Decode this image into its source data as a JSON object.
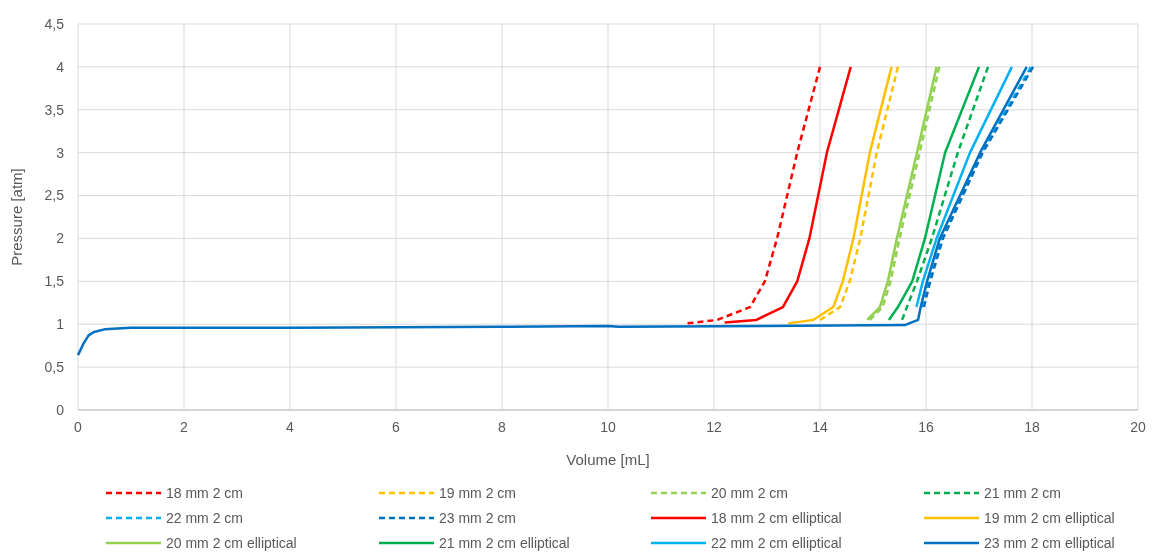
{
  "chart_data": {
    "type": "line",
    "xlabel": "Volume [mL]",
    "ylabel": "Pressure [atm]",
    "xlim": [
      0,
      20
    ],
    "ylim": [
      0,
      4.5
    ],
    "xticks": [
      0,
      2,
      4,
      6,
      8,
      10,
      12,
      14,
      16,
      18,
      20
    ],
    "yticks": [
      0,
      {
        "value": 0.5,
        "label": "0,5"
      },
      1,
      {
        "value": 1.5,
        "label": "1,5"
      },
      2,
      {
        "value": 2.5,
        "label": "2,5"
      },
      3,
      {
        "value": 3.5,
        "label": "3,5"
      },
      4,
      {
        "value": 4.5,
        "label": "4,5"
      }
    ],
    "grid": true,
    "legend": "bottom",
    "marker": "none",
    "series": [
      {
        "name": "18 mm 2 cm",
        "color": "#ff0000",
        "line_style": "dashed",
        "x": [
          11.5,
          12.06,
          12.68,
          12.96,
          13.19,
          13.57,
          14.0
        ],
        "values": [
          1.01,
          1.05,
          1.2,
          1.5,
          2,
          3,
          4
        ]
      },
      {
        "name": "19 mm 2 cm",
        "color": "#ffc000",
        "line_style": "dashed",
        "x": [
          14.0,
          14.38,
          14.56,
          14.76,
          15.07,
          15.47
        ],
        "values": [
          1.05,
          1.2,
          1.5,
          2,
          3,
          4
        ]
      },
      {
        "name": "20 mm 2 cm",
        "color": "#92d050",
        "line_style": "dashed",
        "x": [
          14.94,
          15.18,
          15.33,
          15.5,
          15.88,
          16.25
        ],
        "values": [
          1.05,
          1.2,
          1.5,
          2,
          3,
          4
        ]
      },
      {
        "name": "21 mm 2 cm",
        "color": "#00b050",
        "line_style": "dashed",
        "x": [
          15.55,
          15.64,
          15.83,
          16.11,
          16.6,
          17.17
        ],
        "values": [
          1.05,
          1.2,
          1.5,
          2,
          3,
          4
        ]
      },
      {
        "name": "22 mm 2 cm",
        "color": "#00b0f0",
        "line_style": "dashed",
        "x": [
          15.92,
          16.05,
          16.3,
          17.05,
          17.98
        ],
        "values": [
          1.2,
          1.5,
          2,
          3,
          4
        ]
      },
      {
        "name": "23 mm 2 cm",
        "color": "#0070c0",
        "line_style": "dashed",
        "x": [
          15.96,
          16.08,
          16.32,
          17.07,
          18.02
        ],
        "values": [
          1.2,
          1.5,
          2,
          3,
          4
        ]
      },
      {
        "name": "18 mm 2 cm elliptical",
        "color": "#ff0000",
        "line_style": "solid",
        "x": [
          12.2,
          12.8,
          13.3,
          13.57,
          13.8,
          14.13,
          14.58
        ],
        "values": [
          1.02,
          1.05,
          1.2,
          1.5,
          2,
          3,
          4
        ]
      },
      {
        "name": "19 mm 2 cm elliptical",
        "color": "#ffc000",
        "line_style": "solid",
        "x": [
          13.4,
          13.87,
          14.25,
          14.43,
          14.63,
          14.94,
          15.35
        ],
        "values": [
          1.01,
          1.05,
          1.2,
          1.5,
          2,
          3,
          4
        ]
      },
      {
        "name": "20 mm 2 cm elliptical",
        "color": "#92d050",
        "line_style": "solid",
        "x": [
          14.89,
          15.13,
          15.28,
          15.45,
          15.83,
          16.2
        ],
        "values": [
          1.05,
          1.2,
          1.5,
          2,
          3,
          4
        ]
      },
      {
        "name": "21 mm 2 cm elliptical",
        "color": "#00b050",
        "line_style": "solid",
        "x": [
          15.3,
          15.47,
          15.74,
          15.98,
          16.36,
          17.0
        ],
        "values": [
          1.05,
          1.2,
          1.5,
          2,
          3,
          4
        ]
      },
      {
        "name": "22 mm 2 cm elliptical",
        "color": "#00b0f0",
        "line_style": "solid",
        "x": [
          15.82,
          15.94,
          16.2,
          16.83,
          17.62
        ],
        "values": [
          1.2,
          1.5,
          2,
          3,
          4
        ]
      },
      {
        "name": "23 mm 2 cm elliptical",
        "color": "#0070c0",
        "line_style": "solid",
        "x": [
          0,
          0.1,
          0.2,
          0.3,
          0.5,
          1,
          4,
          8,
          10,
          10.2,
          15.6,
          15.85,
          15.9,
          16.02,
          16.26,
          17.02,
          17.9
        ],
        "values": [
          0.64,
          0.77,
          0.87,
          0.91,
          0.94,
          0.96,
          0.96,
          0.97,
          0.98,
          0.97,
          0.99,
          1.05,
          1.2,
          1.5,
          2,
          3,
          4
        ]
      }
    ]
  }
}
